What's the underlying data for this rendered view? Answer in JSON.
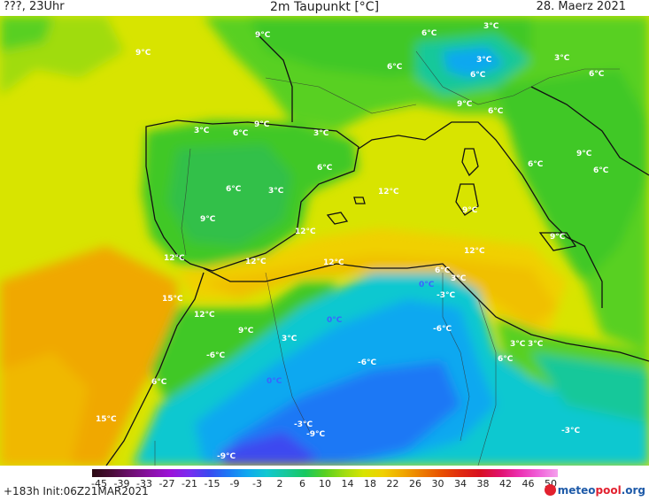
{
  "header": {
    "left": "???, 23Uhr",
    "title": "2m Taupunkt [°C]",
    "date": "28. Maerz 2021"
  },
  "map": {
    "labels": [
      {
        "text": "9°C",
        "color": "white"
      },
      {
        "text": "9°C",
        "color": "white"
      },
      {
        "text": "6°C",
        "color": "white"
      },
      {
        "text": "3°C",
        "color": "white"
      },
      {
        "text": "6°C",
        "color": "white"
      },
      {
        "text": "3°C",
        "color": "white"
      },
      {
        "text": "6°C",
        "color": "white"
      },
      {
        "text": "6°C",
        "color": "white"
      },
      {
        "text": "9°C",
        "color": "white"
      },
      {
        "text": "3°C",
        "color": "white"
      },
      {
        "text": "6°C",
        "color": "white"
      },
      {
        "text": "3°C",
        "color": "white"
      },
      {
        "text": "9°C",
        "color": "white"
      },
      {
        "text": "6°C",
        "color": "white"
      },
      {
        "text": "3°C",
        "color": "white"
      },
      {
        "text": "6°C",
        "color": "white"
      },
      {
        "text": "6°C",
        "color": "white"
      },
      {
        "text": "3°C",
        "color": "white"
      },
      {
        "text": "12°C",
        "color": "white"
      },
      {
        "text": "9°C",
        "color": "white"
      },
      {
        "text": "6°C",
        "color": "white"
      },
      {
        "text": "6°C",
        "color": "white"
      },
      {
        "text": "12°C",
        "color": "white"
      },
      {
        "text": "9°C",
        "color": "white"
      },
      {
        "text": "12°C",
        "color": "white"
      },
      {
        "text": "9°C",
        "color": "white"
      },
      {
        "text": "12°C",
        "color": "white"
      },
      {
        "text": "9°C",
        "color": "white"
      },
      {
        "text": "12°C",
        "color": "white"
      },
      {
        "text": "12°C",
        "color": "white"
      },
      {
        "text": "6°C",
        "color": "white"
      },
      {
        "text": "3°C",
        "color": "white"
      },
      {
        "text": "0°C",
        "color": "blue"
      },
      {
        "text": "-3°C",
        "color": "white"
      },
      {
        "text": "15°C",
        "color": "white"
      },
      {
        "text": "12°C",
        "color": "white"
      },
      {
        "text": "0°C",
        "color": "blue"
      },
      {
        "text": "9°C",
        "color": "white"
      },
      {
        "text": "3°C",
        "color": "white"
      },
      {
        "text": "-6°C",
        "color": "white"
      },
      {
        "text": "-6°C",
        "color": "white"
      },
      {
        "text": "3°C",
        "color": "white"
      },
      {
        "text": "3°C",
        "color": "white"
      },
      {
        "text": "-6°C",
        "color": "white"
      },
      {
        "text": "6°C",
        "color": "white"
      },
      {
        "text": "0°C",
        "color": "blue"
      },
      {
        "text": "6°C",
        "color": "white"
      },
      {
        "text": "15°C",
        "color": "white"
      },
      {
        "text": "-3°C",
        "color": "white"
      },
      {
        "text": "-9°C",
        "color": "white"
      },
      {
        "text": "-3°C",
        "color": "white"
      },
      {
        "text": "-9°C",
        "color": "white"
      }
    ]
  },
  "colorbar": {
    "ticks": [
      "-45",
      "-39",
      "-33",
      "-27",
      "-21",
      "-15",
      "-9",
      "-3",
      "2",
      "6",
      "10",
      "14",
      "18",
      "22",
      "26",
      "30",
      "34",
      "38",
      "42",
      "46",
      "50"
    ],
    "colors": [
      "#2a0a12",
      "#4a0d38",
      "#6d0f70",
      "#8a10a6",
      "#9c12d8",
      "#7a2cf0",
      "#3c48f0",
      "#1c78f5",
      "#10a8f0",
      "#10c8d0",
      "#18c89a",
      "#18c860",
      "#58d020",
      "#a0dc10",
      "#d8e400",
      "#f0d000",
      "#f0a800",
      "#ec7c00",
      "#e85000",
      "#e02a10",
      "#d81020",
      "#e0106a",
      "#ec30b0",
      "#f060d8",
      "#f4a0ec"
    ]
  },
  "footer": {
    "run_info": "+183h  Init:06Z21MAR2021",
    "brand_main": "meteo",
    "brand_accent": "pool",
    "brand_suffix": ".org"
  }
}
